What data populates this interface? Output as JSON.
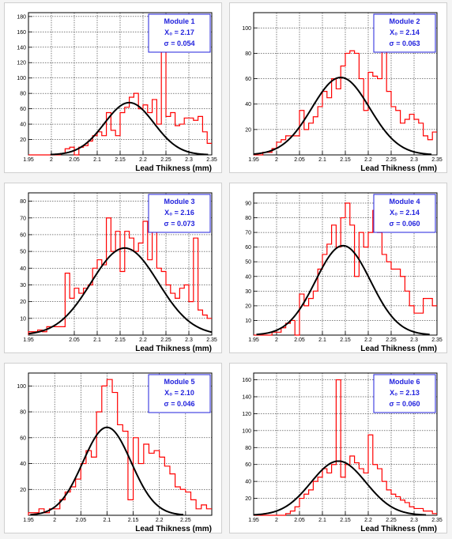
{
  "colors": {
    "histogram": "#ff0000",
    "fit": "#000000",
    "legend_text": "#2222dd",
    "legend_border": "#2222dd",
    "grid": "#000000"
  },
  "chart_data": [
    {
      "type": "bar",
      "title": "Module 1",
      "legend": [
        "Module 1",
        "X₀ =  2.17",
        "σ = 0.054"
      ],
      "xlabel": "Lead Thikness (mm)",
      "xlim": [
        1.95,
        2.35
      ],
      "ylim": [
        0,
        185
      ],
      "xticks": [
        "1.95",
        "2",
        "2.05",
        "2.1",
        "2.15",
        "2.2",
        "2.25",
        "2.3",
        "2.35"
      ],
      "yticks": [
        "20",
        "40",
        "60",
        "80",
        "100",
        "120",
        "140",
        "160",
        "180"
      ],
      "bin_start": 1.95,
      "bin_width": 0.01,
      "values": [
        0,
        0,
        0,
        0,
        0,
        0,
        0,
        2,
        8,
        10,
        0,
        10,
        12,
        18,
        25,
        30,
        25,
        55,
        32,
        25,
        55,
        62,
        75,
        80,
        60,
        65,
        55,
        72,
        40,
        175,
        50,
        55,
        38,
        40,
        48,
        48,
        45,
        50,
        30,
        15,
        15,
        10,
        12,
        5,
        5,
        3
      ],
      "fit": {
        "amplitude": 68,
        "mean": 2.17,
        "sigma": 0.054
      }
    },
    {
      "type": "bar",
      "title": "Module 2",
      "legend": [
        "Module 2",
        "X₀ =  2.14",
        "σ = 0.063"
      ],
      "xlabel": "Lead Thikness (mm)",
      "xlim": [
        1.95,
        2.35
      ],
      "ylim": [
        0,
        112
      ],
      "xticks": [
        "1.95",
        "2",
        "2.05",
        "2.1",
        "2.15",
        "2.2",
        "2.25",
        "2.3",
        "2.35"
      ],
      "yticks": [
        "20",
        "40",
        "60",
        "80",
        "100"
      ],
      "bin_start": 1.95,
      "bin_width": 0.01,
      "values": [
        0,
        0,
        2,
        2,
        5,
        10,
        12,
        15,
        15,
        15,
        35,
        20,
        25,
        30,
        38,
        50,
        45,
        60,
        52,
        70,
        80,
        82,
        80,
        60,
        35,
        65,
        62,
        60,
        105,
        50,
        38,
        35,
        25,
        28,
        32,
        28,
        25,
        15,
        12,
        18,
        12,
        8,
        5,
        2,
        2,
        2
      ],
      "fit": {
        "amplitude": 61,
        "mean": 2.14,
        "sigma": 0.063
      }
    },
    {
      "type": "bar",
      "title": "Module 3",
      "legend": [
        "Module 3",
        "X₀ =  2.16",
        "σ = 0.073"
      ],
      "xlabel": "Lead Thikness (mm)",
      "xlim": [
        1.95,
        2.35
      ],
      "ylim": [
        0,
        85
      ],
      "xticks": [
        "1.95",
        "2.05",
        "2.1",
        "2.15",
        "2.2",
        "2.25",
        "2.3",
        "2.35"
      ],
      "yticks": [
        "10",
        "20",
        "30",
        "40",
        "50",
        "60",
        "70",
        "80"
      ],
      "bin_start": 1.95,
      "bin_width": 0.01,
      "values": [
        2,
        2,
        3,
        2,
        5,
        5,
        5,
        5,
        37,
        22,
        28,
        25,
        28,
        30,
        40,
        45,
        42,
        70,
        50,
        62,
        38,
        62,
        58,
        50,
        55,
        68,
        45,
        80,
        40,
        38,
        30,
        25,
        22,
        28,
        30,
        20,
        58,
        15,
        12,
        10,
        12,
        8,
        8,
        15,
        5,
        5
      ],
      "fit": {
        "amplitude": 52,
        "mean": 2.16,
        "sigma": 0.073
      }
    },
    {
      "type": "bar",
      "title": "Module 4",
      "legend": [
        "Module 4",
        "X₀ =  2.14",
        "σ = 0.060"
      ],
      "xlabel": "Lead Thikness (mm)",
      "xlim": [
        1.95,
        2.35
      ],
      "ylim": [
        0,
        97
      ],
      "xticks": [
        "1.95",
        "2",
        "2.05",
        "2.1",
        "2.15",
        "2.2",
        "2.25",
        "2.3",
        "2.35"
      ],
      "yticks": [
        "10",
        "20",
        "30",
        "40",
        "50",
        "60",
        "70",
        "80",
        "90"
      ],
      "bin_start": 1.95,
      "bin_width": 0.01,
      "values": [
        0,
        0,
        0,
        0,
        2,
        2,
        5,
        8,
        10,
        0,
        28,
        20,
        25,
        30,
        45,
        55,
        62,
        75,
        60,
        80,
        90,
        75,
        40,
        70,
        60,
        70,
        85,
        70,
        55,
        50,
        45,
        45,
        40,
        30,
        20,
        15,
        15,
        25,
        25,
        20,
        10,
        8,
        5,
        3,
        2,
        2
      ],
      "fit": {
        "amplitude": 61,
        "mean": 2.145,
        "sigma": 0.06
      }
    },
    {
      "type": "bar",
      "title": "Module 5",
      "legend": [
        "Module 5",
        "X₀ =  2.10",
        "σ = 0.046"
      ],
      "xlabel": "Lead Thikness (mm)",
      "xlim": [
        1.95,
        2.3
      ],
      "ylim": [
        0,
        110
      ],
      "xticks": [
        "1.95",
        "2",
        "2.05",
        "2.1",
        "2.15",
        "2.2",
        "2.25"
      ],
      "yticks": [
        "20",
        "40",
        "60",
        "80",
        "100"
      ],
      "bin_start": 1.95,
      "bin_width": 0.01,
      "values": [
        2,
        2,
        5,
        2,
        5,
        5,
        12,
        18,
        22,
        28,
        40,
        50,
        45,
        80,
        100,
        105,
        95,
        70,
        65,
        12,
        60,
        40,
        55,
        48,
        50,
        45,
        38,
        32,
        22,
        20,
        18,
        12,
        5,
        8,
        5,
        5,
        12,
        15,
        8,
        5,
        5
      ],
      "fit": {
        "amplitude": 68,
        "mean": 2.1,
        "sigma": 0.046
      }
    },
    {
      "type": "bar",
      "title": "Module 6",
      "legend": [
        "Module 6",
        "X₀ =  2.13",
        "σ = 0.060"
      ],
      "xlabel": "Lead Thikness (mm)",
      "xlim": [
        1.95,
        2.35
      ],
      "ylim": [
        0,
        168
      ],
      "xticks": [
        "1.95",
        "2",
        "2.05",
        "2.1",
        "2.15",
        "2.2",
        "2.25",
        "2.3",
        "2.35"
      ],
      "yticks": [
        "20",
        "40",
        "60",
        "80",
        "100",
        "120",
        "140",
        "160"
      ],
      "bin_start": 1.95,
      "bin_width": 0.01,
      "values": [
        0,
        0,
        0,
        0,
        0,
        0,
        0,
        2,
        5,
        10,
        20,
        25,
        30,
        40,
        45,
        55,
        50,
        60,
        160,
        45,
        60,
        70,
        62,
        55,
        50,
        95,
        60,
        55,
        40,
        30,
        25,
        22,
        18,
        15,
        10,
        8,
        8,
        5,
        5,
        2,
        2
      ],
      "fit": {
        "amplitude": 64,
        "mean": 2.135,
        "sigma": 0.06
      }
    }
  ]
}
